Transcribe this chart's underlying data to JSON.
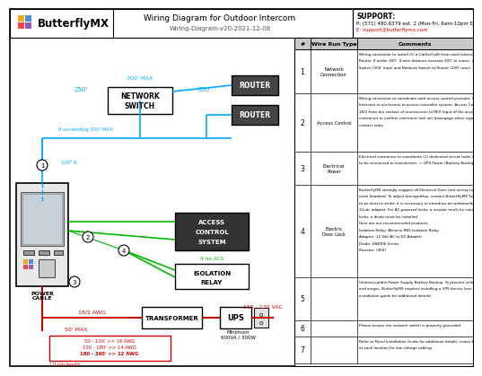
{
  "title": "Wiring Diagram for Outdoor Intercom",
  "subtitle": "Wiring-Diagram-v20-2021-12-08",
  "logo_text": "ButterflyMX",
  "support_title": "SUPPORT:",
  "support_phone": "P: (571) 480.6379 ext. 2 (Mon-Fri, 6am-10pm EST)",
  "support_email": "E: support@butterflymx.com",
  "bg_color": "#ffffff",
  "table_header_bg": "#c8c8c8",
  "wire_colors": {
    "cat6": "#00aaff",
    "green": "#00bb00",
    "power": "#cc0000",
    "dark": "#333333"
  },
  "table_rows": [
    {
      "num": "1",
      "type": "Network\nConnection",
      "comment": "Wiring contractor to install (1) a Cat5e/Cat6 from each Intercom panel location directly to\nRouter. If under 300'. If wire distance exceeds 300' to router, connect Panel to Network\nSwitch (250' max) and Network Switch to Router (250' max)."
    },
    {
      "num": "2",
      "type": "Access Control",
      "comment": "Wiring contractor to coordinate with access control provider, install (1) x 18/2 from each\nIntercom to a/v/screen to access controller system. Access Control provider to terminate\n18/2 from dry contact of touchscreen to REX Input of the access control. Access control\ncontractor to confirm electronic lock will disengage when signal is sent through dry\ncontact relay."
    },
    {
      "num": "3",
      "type": "Electrical\nPower",
      "comment": "Electrical contractor to coordinate (1) dedicated circuit (with 3-20 receptacle). Panel\nto be connected to transformer -> UPS Power (Battery Backup) -> Wall outlet"
    },
    {
      "num": "4",
      "type": "Electric\nDoor Lock",
      "comment": "ButterflyMX strongly suggest all Electrical Door Lock wiring to be home-run directly to\nmain headend. To adjust timing/delay, contact ButterflyMX Support. To wire directly\nto an electric strike, it is necessary to introduce an isolation/buffer relay with a\n12vdc adapter. For AC-powered locks, a resistor much be installed. For DC-powered\nlocks, a diode must be installed.\nHere are our recommended products:\nIsolation Relay: Altronix RB5 Isolation Relay\nAdapter: 12 Volt AC to DC Adapter\nDiode: 1N4006 Series\nResistor: (450)"
    },
    {
      "num": "5",
      "type": "",
      "comment": "Uninterruptible Power Supply Battery Backup. To prevent voltage drops\nand surges, ButterflyMX requires installing a UPS device (see panel\ninstallation guide for additional details)."
    },
    {
      "num": "6",
      "type": "",
      "comment": "Please ensure the network switch is properly grounded."
    },
    {
      "num": "7",
      "type": "",
      "comment": "Refer to Panel Installation Guide for additional details. Leave 6' service loop\nat each location for low voltage cabling."
    }
  ]
}
